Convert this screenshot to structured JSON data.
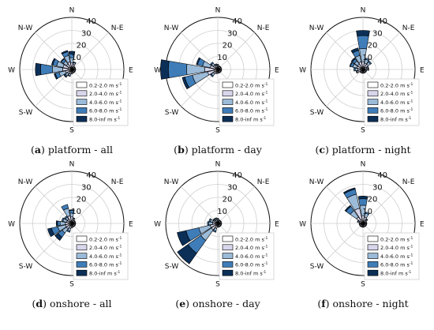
{
  "colors": [
    "#ffffff",
    "#d7d6eb",
    "#9bbbd9",
    "#3f7db9",
    "#0b2f57"
  ],
  "legend_suffix": " m s",
  "legend_superscript": "-1",
  "chart_data": [
    {
      "type": "windrose",
      "letter": "a",
      "caption": "platform - all",
      "directions": [
        "N",
        "N-E",
        "E",
        "S-E",
        "S",
        "S-W",
        "W",
        "N-W"
      ],
      "radial_ticks": [
        10,
        20,
        30,
        40
      ],
      "rmax": 40,
      "bins": [
        "0.2-2.0",
        "2.0-4.0",
        "4.0-6.0",
        "6.0-8.0",
        "8.0-inf"
      ],
      "legend_placement": "lower-right",
      "sectors": [
        {
          "angle": 0,
          "values": [
            2,
            3,
            4,
            3,
            2
          ]
        },
        {
          "angle": 22.5,
          "values": [
            2,
            2,
            1.5,
            0.5,
            0
          ]
        },
        {
          "angle": 45,
          "values": [
            1.5,
            1,
            0.5,
            0,
            0
          ]
        },
        {
          "angle": 67.5,
          "values": [
            1.5,
            1,
            0.5,
            0,
            0
          ]
        },
        {
          "angle": 90,
          "values": [
            1.5,
            1,
            0.5,
            0,
            0
          ]
        },
        {
          "angle": 112.5,
          "values": [
            1.5,
            1,
            0.5,
            0,
            0
          ]
        },
        {
          "angle": 135,
          "values": [
            1.5,
            1,
            0.5,
            0,
            0
          ]
        },
        {
          "angle": 157.5,
          "values": [
            1.5,
            1,
            0.5,
            0,
            0
          ]
        },
        {
          "angle": 180,
          "values": [
            1.5,
            1,
            1,
            0,
            0
          ]
        },
        {
          "angle": 202.5,
          "values": [
            2,
            1.5,
            1.5,
            0.5,
            0
          ]
        },
        {
          "angle": 225,
          "values": [
            2,
            2,
            2,
            1,
            0.5
          ]
        },
        {
          "angle": 247.5,
          "values": [
            2,
            3,
            5,
            3,
            1
          ]
        },
        {
          "angle": 270,
          "values": [
            3,
            4,
            8,
            9,
            4
          ]
        },
        {
          "angle": 292.5,
          "values": [
            3,
            4,
            5,
            3,
            1
          ]
        },
        {
          "angle": 315,
          "values": [
            2,
            3,
            3,
            2,
            0.5
          ]
        },
        {
          "angle": 337.5,
          "values": [
            2,
            4,
            5,
            3,
            1
          ]
        }
      ]
    },
    {
      "type": "windrose",
      "letter": "b",
      "caption": "platform - day",
      "directions": [
        "N",
        "N-E",
        "E",
        "S-E",
        "S",
        "S-W",
        "W",
        "N-W"
      ],
      "radial_ticks": [
        10,
        20,
        30,
        40
      ],
      "rmax": 40,
      "bins": [
        "0.2-2.0",
        "2.0-4.0",
        "4.0-6.0",
        "6.0-8.0",
        "8.0-inf"
      ],
      "legend_placement": "lower-right",
      "sectors": [
        {
          "angle": 0,
          "values": [
            1.5,
            1,
            1,
            0.5,
            0
          ]
        },
        {
          "angle": 22.5,
          "values": [
            1.5,
            1,
            0.5,
            0,
            0
          ]
        },
        {
          "angle": 45,
          "values": [
            1.5,
            1,
            0.5,
            0,
            0
          ]
        },
        {
          "angle": 67.5,
          "values": [
            1.5,
            1,
            0.5,
            0,
            0
          ]
        },
        {
          "angle": 90,
          "values": [
            1.5,
            1,
            0.5,
            0,
            0
          ]
        },
        {
          "angle": 112.5,
          "values": [
            1.5,
            1,
            0.5,
            0,
            0
          ]
        },
        {
          "angle": 135,
          "values": [
            1.5,
            1,
            0.5,
            0,
            0
          ]
        },
        {
          "angle": 157.5,
          "values": [
            1.5,
            1,
            0.5,
            0,
            0
          ]
        },
        {
          "angle": 180,
          "values": [
            1.5,
            1,
            0.5,
            0,
            0
          ]
        },
        {
          "angle": 202.5,
          "values": [
            1.5,
            1,
            1,
            0,
            0
          ]
        },
        {
          "angle": 225,
          "values": [
            2,
            2,
            2,
            1,
            0
          ]
        },
        {
          "angle": 247.5,
          "values": [
            3,
            5,
            12,
            6,
            2
          ]
        },
        {
          "angle": 270,
          "values": [
            3,
            7,
            14,
            14,
            6
          ]
        },
        {
          "angle": 292.5,
          "values": [
            2,
            4,
            6,
            4,
            1
          ]
        },
        {
          "angle": 315,
          "values": [
            2,
            2,
            2,
            1,
            0
          ]
        },
        {
          "angle": 337.5,
          "values": [
            1.5,
            1.5,
            1,
            0.5,
            0
          ]
        }
      ]
    },
    {
      "type": "windrose",
      "letter": "c",
      "caption": "platform - night",
      "directions": [
        "N",
        "N-E",
        "E",
        "S-E",
        "S",
        "S-W",
        "W",
        "N-W"
      ],
      "radial_ticks": [
        10,
        20,
        30,
        40
      ],
      "rmax": 40,
      "bins": [
        "0.2-2.0",
        "2.0-4.0",
        "4.0-6.0",
        "6.0-8.0",
        "8.0-inf"
      ],
      "legend_placement": "lower-right",
      "sectors": [
        {
          "angle": 0,
          "values": [
            2,
            4,
            10,
            10,
            4
          ]
        },
        {
          "angle": 22.5,
          "values": [
            2,
            3,
            3,
            1,
            0
          ]
        },
        {
          "angle": 45,
          "values": [
            2,
            3,
            2,
            1,
            0
          ]
        },
        {
          "angle": 67.5,
          "values": [
            1.5,
            1.5,
            1,
            0.5,
            0
          ]
        },
        {
          "angle": 90,
          "values": [
            1.5,
            1.5,
            1,
            0.5,
            0
          ]
        },
        {
          "angle": 112.5,
          "values": [
            1.5,
            1,
            0.5,
            0,
            0
          ]
        },
        {
          "angle": 135,
          "values": [
            1.5,
            1,
            0.5,
            0,
            0
          ]
        },
        {
          "angle": 157.5,
          "values": [
            1.5,
            1,
            0.5,
            0,
            0
          ]
        },
        {
          "angle": 180,
          "values": [
            1.5,
            1,
            0.5,
            0,
            0
          ]
        },
        {
          "angle": 202.5,
          "values": [
            1.5,
            1,
            0.5,
            0,
            0
          ]
        },
        {
          "angle": 225,
          "values": [
            1.5,
            1,
            0.5,
            0,
            0
          ]
        },
        {
          "angle": 247.5,
          "values": [
            2,
            2,
            1,
            0.5,
            0
          ]
        },
        {
          "angle": 270,
          "values": [
            2,
            2,
            2,
            1,
            0
          ]
        },
        {
          "angle": 292.5,
          "values": [
            2,
            3,
            3,
            2,
            0.5
          ]
        },
        {
          "angle": 315,
          "values": [
            2,
            3,
            3,
            2,
            1
          ]
        },
        {
          "angle": 337.5,
          "values": [
            2,
            4,
            5,
            4,
            2
          ]
        }
      ]
    },
    {
      "type": "windrose",
      "letter": "d",
      "caption": "onshore - all",
      "directions": [
        "N",
        "N-E",
        "E",
        "S-E",
        "S",
        "S-W",
        "W",
        "N-W"
      ],
      "radial_ticks": [
        10,
        20,
        30,
        40
      ],
      "rmax": 40,
      "bins": [
        "0.2-2.0",
        "2.0-4.0",
        "4.0-6.0",
        "6.0-8.0",
        "8.0-inf"
      ],
      "legend_placement": "lower-right",
      "sectors": [
        {
          "angle": 0,
          "values": [
            2,
            3,
            3,
            2,
            0.5
          ]
        },
        {
          "angle": 22.5,
          "values": [
            1.5,
            1.5,
            1,
            0.5,
            0
          ]
        },
        {
          "angle": 45,
          "values": [
            1.5,
            1,
            0.5,
            0,
            0
          ]
        },
        {
          "angle": 67.5,
          "values": [
            1.5,
            1,
            0.5,
            0,
            0
          ]
        },
        {
          "angle": 90,
          "values": [
            1.5,
            1,
            0.5,
            0,
            0
          ]
        },
        {
          "angle": 112.5,
          "values": [
            1.5,
            1,
            0.5,
            0,
            0
          ]
        },
        {
          "angle": 135,
          "values": [
            1.5,
            1,
            0.5,
            0,
            0
          ]
        },
        {
          "angle": 157.5,
          "values": [
            1.5,
            1,
            0.5,
            0,
            0
          ]
        },
        {
          "angle": 180,
          "values": [
            1.5,
            1,
            1,
            0,
            0
          ]
        },
        {
          "angle": 202.5,
          "values": [
            2,
            2,
            2,
            1,
            0
          ]
        },
        {
          "angle": 225,
          "values": [
            2,
            3,
            4,
            4,
            3
          ]
        },
        {
          "angle": 247.5,
          "values": [
            2,
            3,
            6,
            5,
            3
          ]
        },
        {
          "angle": 270,
          "values": [
            2,
            3,
            4,
            2,
            1
          ]
        },
        {
          "angle": 292.5,
          "values": [
            2,
            2,
            3,
            1,
            0
          ]
        },
        {
          "angle": 315,
          "values": [
            2,
            2,
            2,
            1,
            0
          ]
        },
        {
          "angle": 337.5,
          "values": [
            2,
            4,
            6,
            3,
            0
          ]
        }
      ]
    },
    {
      "type": "windrose",
      "letter": "e",
      "caption": "onshore - day",
      "directions": [
        "N",
        "N-E",
        "E",
        "S-E",
        "S",
        "S-W",
        "W",
        "N-W"
      ],
      "radial_ticks": [
        10,
        20,
        30,
        40
      ],
      "rmax": 40,
      "bins": [
        "0.2-2.0",
        "2.0-4.0",
        "4.0-6.0",
        "6.0-8.0",
        "8.0-inf"
      ],
      "legend_placement": "lower-right",
      "sectors": [
        {
          "angle": 0,
          "values": [
            1.5,
            1,
            1,
            0.5,
            0
          ]
        },
        {
          "angle": 22.5,
          "values": [
            1.5,
            1,
            0.5,
            0,
            0
          ]
        },
        {
          "angle": 45,
          "values": [
            1.5,
            1,
            0.5,
            0,
            0
          ]
        },
        {
          "angle": 67.5,
          "values": [
            1.5,
            1,
            0.5,
            0,
            0
          ]
        },
        {
          "angle": 90,
          "values": [
            1.5,
            1,
            0.5,
            0,
            0
          ]
        },
        {
          "angle": 112.5,
          "values": [
            1.5,
            1,
            0.5,
            0,
            0
          ]
        },
        {
          "angle": 135,
          "values": [
            1.5,
            1,
            0.5,
            0,
            0
          ]
        },
        {
          "angle": 157.5,
          "values": [
            1.5,
            1,
            0.5,
            0,
            0
          ]
        },
        {
          "angle": 180,
          "values": [
            1.5,
            1,
            0.5,
            0,
            0
          ]
        },
        {
          "angle": 202.5,
          "values": [
            2,
            2,
            2,
            1,
            0
          ]
        },
        {
          "angle": 225,
          "values": [
            2,
            4,
            10,
            12,
            10
          ]
        },
        {
          "angle": 247.5,
          "values": [
            2,
            4,
            9,
            10,
            7
          ]
        },
        {
          "angle": 270,
          "values": [
            2,
            2,
            3,
            1,
            0
          ]
        },
        {
          "angle": 292.5,
          "values": [
            2,
            2,
            2,
            1,
            0
          ]
        },
        {
          "angle": 315,
          "values": [
            1.5,
            1.5,
            1,
            0.5,
            0
          ]
        },
        {
          "angle": 337.5,
          "values": [
            1.5,
            1.5,
            1,
            0.5,
            0
          ]
        }
      ]
    },
    {
      "type": "windrose",
      "letter": "f",
      "caption": "onshore - night",
      "directions": [
        "N",
        "N-E",
        "E",
        "S-E",
        "S",
        "S-W",
        "W",
        "N-W"
      ],
      "radial_ticks": [
        10,
        20,
        30,
        40
      ],
      "rmax": 40,
      "bins": [
        "0.2-2.0",
        "2.0-4.0",
        "4.0-6.0",
        "6.0-8.0",
        "8.0-inf"
      ],
      "legend_placement": "lower-right",
      "sectors": [
        {
          "angle": 0,
          "values": [
            2,
            4,
            8,
            5,
            2
          ]
        },
        {
          "angle": 22.5,
          "values": [
            2,
            3,
            3,
            1,
            0
          ]
        },
        {
          "angle": 45,
          "values": [
            1.5,
            1.5,
            1,
            0.5,
            0
          ]
        },
        {
          "angle": 67.5,
          "values": [
            1.5,
            1,
            0.5,
            0,
            0
          ]
        },
        {
          "angle": 90,
          "values": [
            1.5,
            1,
            0.5,
            0,
            0
          ]
        },
        {
          "angle": 112.5,
          "values": [
            1.5,
            1,
            0.5,
            0,
            0
          ]
        },
        {
          "angle": 135,
          "values": [
            1.5,
            1,
            0.5,
            0,
            0
          ]
        },
        {
          "angle": 157.5,
          "values": [
            1.5,
            1,
            0.5,
            0,
            0
          ]
        },
        {
          "angle": 180,
          "values": [
            1.5,
            1,
            0.5,
            0,
            0
          ]
        },
        {
          "angle": 202.5,
          "values": [
            1.5,
            1,
            0.5,
            0,
            0
          ]
        },
        {
          "angle": 225,
          "values": [
            1.5,
            1,
            0.5,
            0,
            0
          ]
        },
        {
          "angle": 247.5,
          "values": [
            1.5,
            1,
            0.5,
            0,
            0
          ]
        },
        {
          "angle": 270,
          "values": [
            1.5,
            1,
            0.5,
            0,
            0
          ]
        },
        {
          "angle": 292.5,
          "values": [
            1.5,
            1.5,
            1,
            0.5,
            0
          ]
        },
        {
          "angle": 315,
          "values": [
            2,
            4,
            6,
            4,
            1
          ]
        },
        {
          "angle": 337.5,
          "values": [
            3,
            9,
            11,
            4,
            1
          ]
        }
      ]
    }
  ]
}
